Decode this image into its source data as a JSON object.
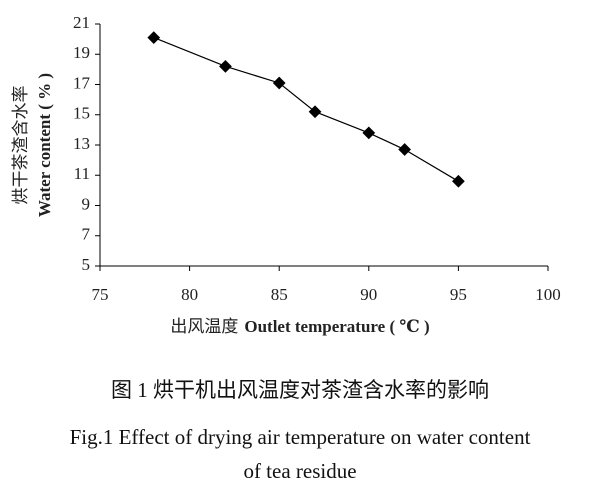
{
  "chart_data": {
    "type": "line",
    "x": [
      78,
      82,
      85,
      87,
      90,
      92,
      95
    ],
    "series": [
      {
        "color": "#000000",
        "values": [
          20.1,
          18.2,
          17.1,
          15.2,
          13.8,
          12.7,
          10.6
        ]
      }
    ],
    "xlim": [
      75,
      100
    ],
    "xticks": [
      75,
      80,
      85,
      90,
      95,
      100
    ],
    "ylim": [
      5,
      21
    ],
    "yticks": [
      5,
      7,
      9,
      11,
      13,
      15,
      17,
      19,
      21
    ],
    "xlabel": [
      "出风温度",
      "Outlet temperature ( ℃ )"
    ],
    "ylabel": [
      "烘干茶渣含水率",
      "Water content ( % )"
    ],
    "caption": [
      "图 1  烘干机出风温度对茶渣含水率的影响",
      "Fig.1 Effect of drying air temperature on water content of tea residue"
    ]
  }
}
